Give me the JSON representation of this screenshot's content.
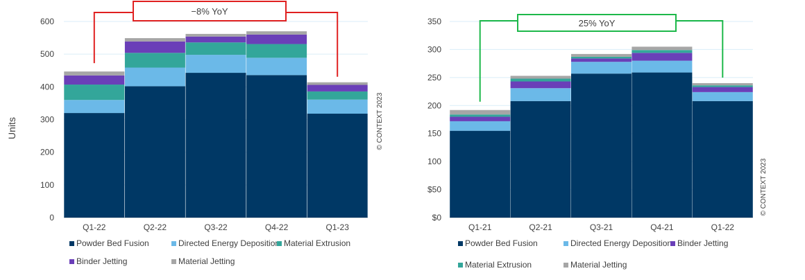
{
  "colors": {
    "powder_bed_fusion": "#003865",
    "directed_energy_deposition": "#6bb9e8",
    "material_extrusion": "#33a69a",
    "binder_jetting": "#6a3fb8",
    "material_jetting": "#a6a6a6",
    "grid": "#d9eef8",
    "red_annotation": "#e02020",
    "green_annotation": "#1db84a"
  },
  "chart_data": [
    {
      "type": "bar",
      "stacked": true,
      "ylabel": "Units",
      "ylim": [
        0,
        600
      ],
      "y_ticks": [
        "0",
        "100",
        "200",
        "300",
        "400",
        "500",
        "600"
      ],
      "categories": [
        "Q1-22",
        "Q2-22",
        "Q3-22",
        "Q4-22",
        "Q1-23"
      ],
      "series": [
        {
          "name": "Powder Bed Fusion",
          "color_key": "powder_bed_fusion",
          "values": [
            320,
            402,
            443,
            436,
            318
          ]
        },
        {
          "name": "Directed Energy Deposition",
          "color_key": "directed_energy_deposition",
          "values": [
            40,
            57,
            55,
            53,
            43
          ]
        },
        {
          "name": "Material Extrusion",
          "color_key": "material_extrusion",
          "values": [
            47,
            45,
            38,
            42,
            25
          ]
        },
        {
          "name": "Binder Jetting",
          "color_key": "binder_jetting",
          "values": [
            28,
            35,
            18,
            29,
            20
          ]
        },
        {
          "name": "Material Jetting",
          "color_key": "material_jetting",
          "values": [
            12,
            10,
            8,
            10,
            8
          ]
        }
      ],
      "legend_order": [
        "Powder Bed Fusion",
        "Directed Energy Deposition",
        "Material Extrusion",
        "Binder Jetting",
        "Material Jetting"
      ],
      "annotation": {
        "text": "−8% YoY",
        "color_key": "red_annotation",
        "from": "Q1-22",
        "to": "Q1-23"
      },
      "copyright": "© CONTEXT 2023",
      "grid": true
    },
    {
      "type": "bar",
      "stacked": true,
      "ylabel": "",
      "ylim": [
        0,
        350
      ],
      "y_ticks": [
        "$0",
        "$50",
        "100",
        "150",
        "200",
        "250",
        "300",
        "350"
      ],
      "categories": [
        "Q1-21",
        "Q2-21",
        "Q3-21",
        "Q4-21",
        "Q1-22"
      ],
      "series": [
        {
          "name": "Powder Bed Fusion",
          "color_key": "powder_bed_fusion",
          "values": [
            155,
            208,
            257,
            259,
            208
          ]
        },
        {
          "name": "Directed Energy Deposition",
          "color_key": "directed_energy_deposition",
          "values": [
            17,
            23,
            21,
            21,
            16
          ]
        },
        {
          "name": "Binder Jetting",
          "color_key": "binder_jetting",
          "values": [
            8,
            12,
            6,
            14,
            9
          ]
        },
        {
          "name": "Material Extrusion",
          "color_key": "material_extrusion",
          "values": [
            4,
            5,
            3,
            5,
            3
          ]
        },
        {
          "name": "Material Jetting",
          "color_key": "material_jetting",
          "values": [
            8,
            5,
            5,
            6,
            4
          ]
        }
      ],
      "legend_order": [
        "Powder Bed Fusion",
        "Directed Energy Deposition",
        "Binder Jetting",
        "Material Extrusion",
        "Material Jetting"
      ],
      "annotation": {
        "text": "25% YoY",
        "color_key": "green_annotation",
        "from": "Q1-21",
        "to": "Q1-22"
      },
      "copyright": "© CONTEXT 2023",
      "grid": true
    }
  ]
}
